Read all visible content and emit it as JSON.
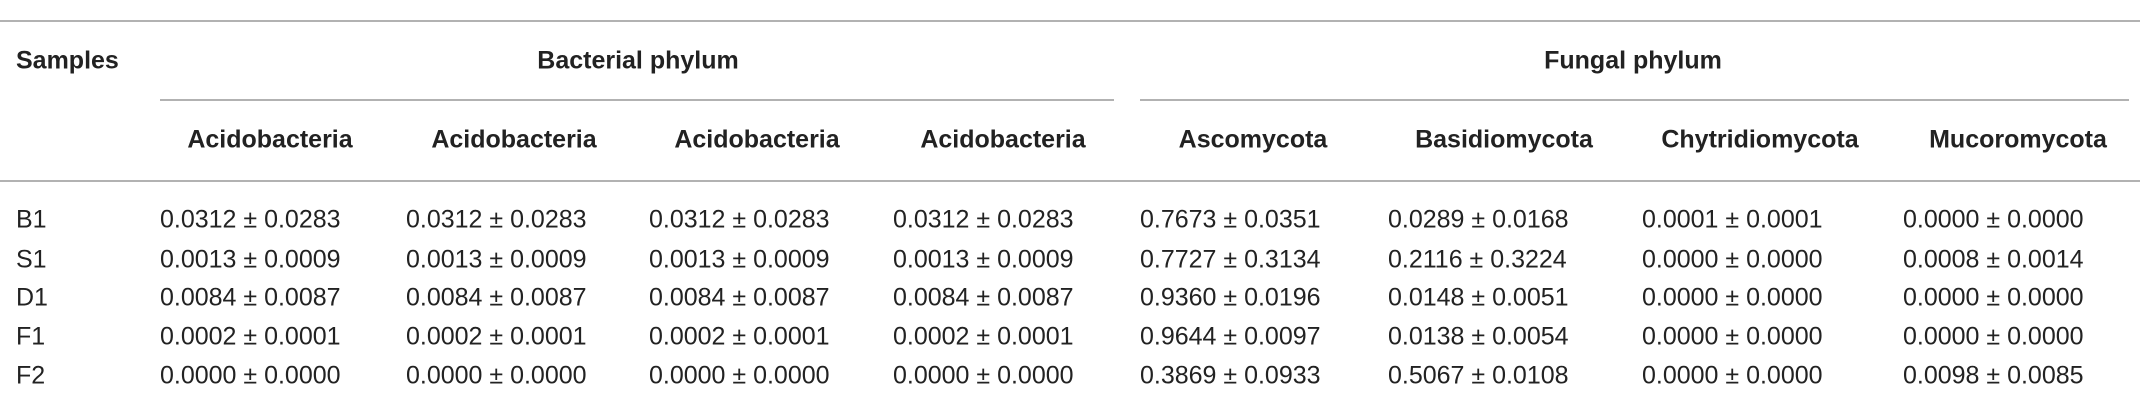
{
  "table": {
    "header": {
      "samples": "Samples",
      "groups": [
        "Bacterial phylum",
        "Fungal phylum"
      ],
      "columns": [
        "Acidobacteria",
        "Acidobacteria",
        "Acidobacteria",
        "Acidobacteria",
        "Ascomycota",
        "Basidiomycota",
        "Chytridiomycota",
        "Mucoromycota"
      ]
    },
    "rows": [
      [
        "B1",
        "0.0312 ± 0.0283",
        "0.0312 ± 0.0283",
        "0.0312 ± 0.0283",
        "0.0312 ± 0.0283",
        "0.7673 ± 0.0351",
        "0.0289 ± 0.0168",
        "0.0001 ± 0.0001",
        "0.0000 ± 0.0000"
      ],
      [
        "S1",
        "0.0013 ± 0.0009",
        "0.0013 ± 0.0009",
        "0.0013 ± 0.0009",
        "0.0013 ± 0.0009",
        "0.7727 ± 0.3134",
        "0.2116 ± 0.3224",
        "0.0000 ± 0.0000",
        "0.0008 ± 0.0014"
      ],
      [
        "D1",
        "0.0084 ± 0.0087",
        "0.0084 ± 0.0087",
        "0.0084 ± 0.0087",
        "0.0084 ± 0.0087",
        "0.9360 ± 0.0196",
        "0.0148 ± 0.0051",
        "0.0000 ± 0.0000",
        "0.0000 ± 0.0000"
      ],
      [
        "F1",
        "0.0002 ± 0.0001",
        "0.0002 ± 0.0001",
        "0.0002 ± 0.0001",
        "0.0002 ± 0.0001",
        "0.9644 ± 0.0097",
        "0.0138 ± 0.0054",
        "0.0000 ± 0.0000",
        "0.0000 ± 0.0000"
      ],
      [
        "F2",
        "0.0000 ± 0.0000",
        "0.0000 ± 0.0000",
        "0.0000 ± 0.0000",
        "0.0000 ± 0.0000",
        "0.3869 ± 0.0933",
        "0.5067 ± 0.0108",
        "0.0000 ± 0.0000",
        "0.0098 ± 0.0085"
      ]
    ]
  }
}
